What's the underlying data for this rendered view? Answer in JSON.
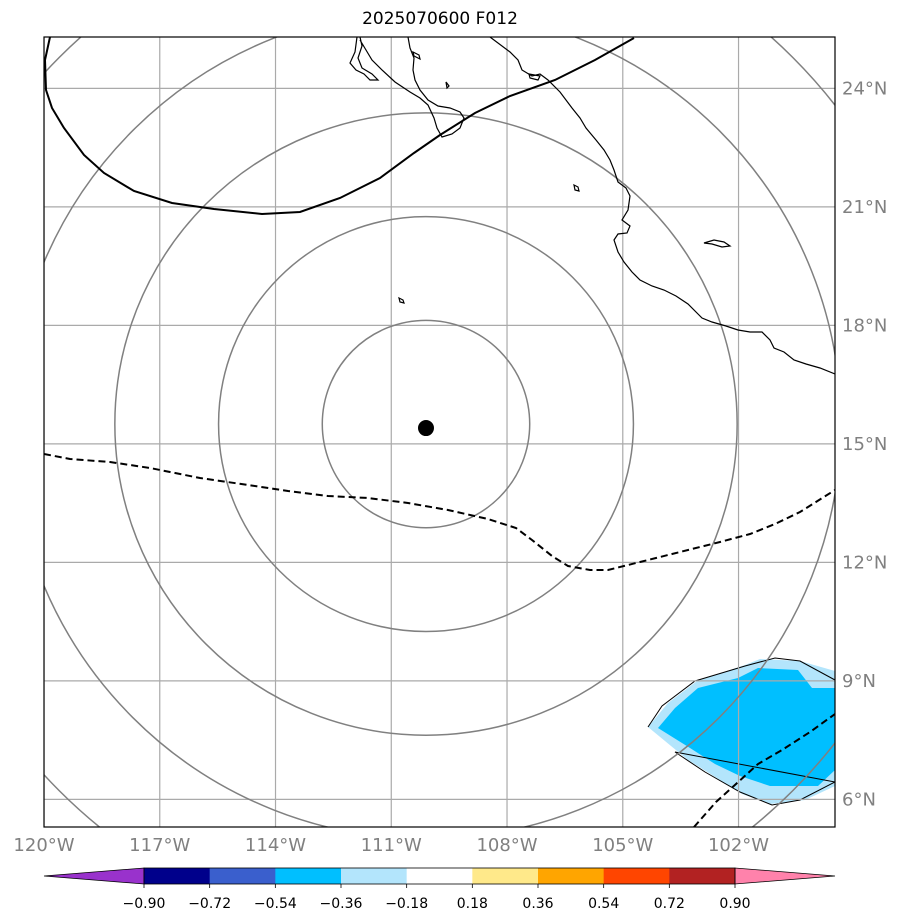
{
  "title": "2025070600 F012",
  "map": {
    "lon_range": [
      -120,
      -99.5
    ],
    "lat_range": [
      5.3,
      25.3
    ],
    "lat_ticks": [
      {
        "value": 6,
        "label": "6°N"
      },
      {
        "value": 9,
        "label": "9°N"
      },
      {
        "value": 12,
        "label": "12°N"
      },
      {
        "value": 15,
        "label": "15°N"
      },
      {
        "value": 18,
        "label": "18°N"
      },
      {
        "value": 21,
        "label": "21°N"
      },
      {
        "value": 24,
        "label": "24°N"
      }
    ],
    "lon_ticks": [
      {
        "value": -120,
        "label": "120°W"
      },
      {
        "value": -117,
        "label": "117°W"
      },
      {
        "value": -114,
        "label": "114°W"
      },
      {
        "value": -111,
        "label": "111°W"
      },
      {
        "value": -108,
        "label": "108°W"
      },
      {
        "value": -105,
        "label": "105°W"
      },
      {
        "value": -102,
        "label": "102°W"
      }
    ],
    "storm_center": {
      "lon": -110.1,
      "lat": 15.4
    },
    "range_rings_deg": [
      2.8,
      5.6,
      8.4,
      11.2,
      14.0
    ],
    "colors": {
      "grid": "#aaaaaa",
      "rings": "#808080",
      "coast": "#000000",
      "contour": "#000000",
      "shade_dark": "#00bfff",
      "shade_light": "#b3e5fc"
    }
  },
  "colorbar": {
    "labels": [
      "−0.90",
      "−0.72",
      "−0.54",
      "−0.36",
      "−0.18",
      "0.18",
      "0.36",
      "0.54",
      "0.72",
      "0.90"
    ],
    "colors": [
      "#9932cc",
      "#00008b",
      "#3a5fcd",
      "#00bfff",
      "#b3e5fc",
      "#ffffff",
      "#ffe98a",
      "#ffa500",
      "#ff4500",
      "#b22222",
      "#ff82ab"
    ]
  }
}
